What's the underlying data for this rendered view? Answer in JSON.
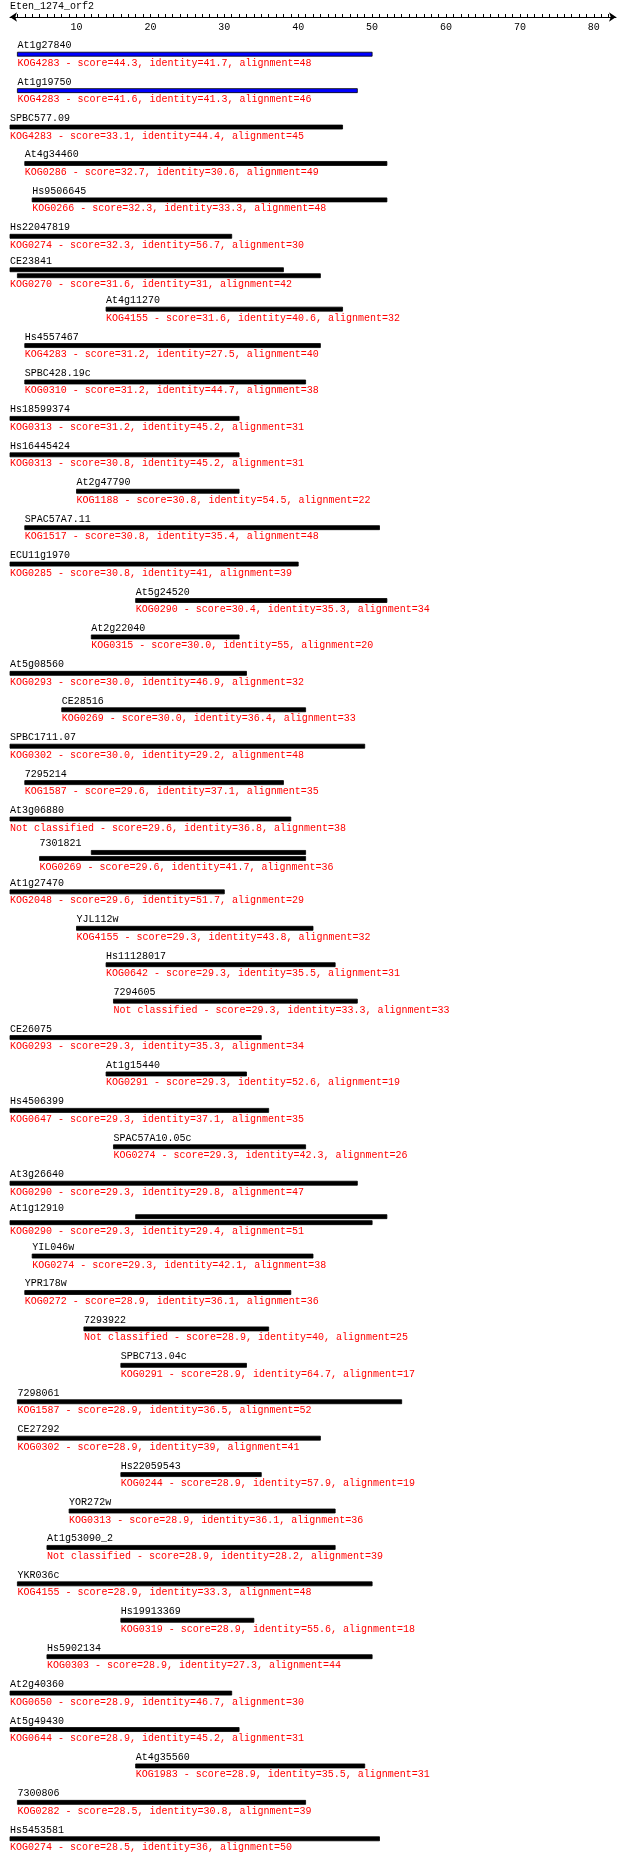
{
  "chart_data": {
    "type": "bar",
    "orientation": "horizontal",
    "title": "Eten_1274_orf2",
    "categories": [
      "At1g27840",
      "At1g19750",
      "SPBC577.09",
      "At4g34460",
      "Hs9506645",
      "Hs22047819",
      "CE23841",
      "At4g11270",
      "Hs4557467",
      "SPBC428.19c",
      "Hs18599374",
      "Hs16445424",
      "At2g47790",
      "SPAC57A7.11",
      "ECU11g1970",
      "At5g24520",
      "At2g22040",
      "At5g08560",
      "CE28516",
      "SPBC1711.07",
      "7295214",
      "At3g06880",
      "7301821",
      "At1g27470",
      "YJL112w",
      "Hs11128017",
      "7294605",
      "CE26075",
      "At1g15440",
      "Hs4506399",
      "SPAC57A10.05c",
      "At3g26640",
      "At1g12910",
      "YIL046w",
      "YPR178w",
      "7293922",
      "SPBC713.04c",
      "7298061",
      "CE27292",
      "Hs22059543",
      "YOR272w",
      "At1g53090_2",
      "YKR036c",
      "Hs19913369",
      "Hs5902134",
      "At2g40360",
      "At5g49430",
      "At4g35560",
      "7300806",
      "Hs5453581"
    ],
    "series": [
      {
        "color": "#000000",
        "base": [
          null,
          null,
          null,
          null,
          null,
          null,
          null,
          null,
          null,
          null,
          null,
          null,
          null,
          null,
          null,
          null,
          null,
          null,
          null,
          null,
          null,
          null,
          12,
          null,
          null,
          null,
          null,
          null,
          null,
          null,
          null,
          null,
          18,
          null,
          null,
          null,
          null,
          null,
          null,
          null,
          null,
          null,
          null,
          null,
          null,
          null,
          null,
          null,
          null,
          null
        ],
        "values": [
          null,
          null,
          null,
          null,
          null,
          null,
          null,
          null,
          null,
          null,
          null,
          null,
          null,
          null,
          null,
          null,
          null,
          null,
          null,
          null,
          null,
          null,
          29,
          null,
          null,
          null,
          null,
          null,
          null,
          null,
          null,
          null,
          34,
          null,
          null,
          null,
          null,
          null,
          null,
          null,
          null,
          null,
          null,
          null,
          null,
          null,
          null,
          null,
          null,
          null
        ]
      },
      {
        "colors": [
          "#0000ff",
          "#0000ff",
          "#000000",
          "#000000",
          "#000000",
          "#000000",
          "#000000",
          "#000000",
          "#000000",
          "#000000",
          "#000000",
          "#000000",
          "#000000",
          "#000000",
          "#000000",
          "#000000",
          "#000000",
          "#000000",
          "#000000",
          "#000000",
          "#000000",
          "#000000",
          "#000000",
          "#000000",
          "#000000",
          "#000000",
          "#000000",
          "#000000",
          "#000000",
          "#000000",
          "#000000",
          "#000000",
          "#000000",
          "#000000",
          "#000000",
          "#000000",
          "#000000",
          "#000000",
          "#000000",
          "#000000",
          "#000000",
          "#000000",
          "#000000",
          "#000000",
          "#000000",
          "#000000",
          "#000000",
          "#000000",
          "#000000",
          "#000000"
        ],
        "base": [
          2,
          2,
          1,
          3,
          4,
          1,
          1,
          14,
          3,
          3,
          1,
          1,
          10,
          3,
          1,
          18,
          12,
          1,
          8,
          1,
          3,
          1,
          5,
          1,
          10,
          14,
          15,
          1,
          14,
          1,
          15,
          1,
          1,
          4,
          3,
          11,
          16,
          2,
          2,
          16,
          9,
          6,
          2,
          16,
          6,
          1,
          1,
          18,
          2,
          1
        ],
        "values": [
          48,
          46,
          45,
          49,
          48,
          30,
          37,
          32,
          40,
          38,
          31,
          31,
          22,
          48,
          39,
          34,
          20,
          32,
          33,
          48,
          35,
          38,
          36,
          29,
          32,
          31,
          33,
          34,
          19,
          35,
          26,
          47,
          49,
          38,
          36,
          25,
          17,
          52,
          41,
          19,
          36,
          39,
          48,
          18,
          44,
          30,
          31,
          31,
          39,
          50
        ]
      },
      {
        "color": "#000000",
        "base": [
          null,
          null,
          null,
          null,
          null,
          null,
          2,
          null,
          null,
          null,
          null,
          null,
          null,
          null,
          null,
          null,
          null,
          null,
          null,
          null,
          null,
          null,
          null,
          null,
          null,
          null,
          null,
          null,
          null,
          null,
          null,
          null,
          null,
          null,
          null,
          null,
          null,
          null,
          null,
          null,
          null,
          null,
          null,
          null,
          null,
          null,
          null,
          null,
          null,
          null
        ],
        "values": [
          null,
          null,
          null,
          null,
          null,
          null,
          41,
          null,
          null,
          null,
          null,
          null,
          null,
          null,
          null,
          null,
          null,
          null,
          null,
          null,
          null,
          null,
          null,
          null,
          null,
          null,
          null,
          null,
          null,
          null,
          null,
          null,
          null,
          null,
          null,
          null,
          null,
          null,
          null,
          null,
          null,
          null,
          null,
          null,
          null,
          null,
          null,
          null,
          null,
          null
        ]
      }
    ],
    "xlim": [
      1,
      83
    ],
    "xticks": [
      {
        "value": 2,
        "label": null
      },
      {
        "value": 3,
        "label": null
      },
      {
        "value": 4,
        "label": null
      },
      {
        "value": 5,
        "label": null
      },
      {
        "value": 6,
        "label": null
      },
      {
        "value": 7,
        "label": null
      },
      {
        "value": 8,
        "label": null
      },
      {
        "value": 9,
        "label": null
      },
      10,
      {
        "value": 11,
        "label": null
      },
      {
        "value": 12,
        "label": null
      },
      {
        "value": 13,
        "label": null
      },
      {
        "value": 14,
        "label": null
      },
      {
        "value": 15,
        "label": null
      },
      {
        "value": 16,
        "label": null
      },
      {
        "value": 17,
        "label": null
      },
      {
        "value": 18,
        "label": null
      },
      {
        "value": 19,
        "label": null
      },
      20,
      {
        "value": 21,
        "label": null
      },
      {
        "value": 22,
        "label": null
      },
      {
        "value": 23,
        "label": null
      },
      {
        "value": 24,
        "label": null
      },
      {
        "value": 25,
        "label": null
      },
      {
        "value": 26,
        "label": null
      },
      {
        "value": 27,
        "label": null
      },
      {
        "value": 28,
        "label": null
      },
      {
        "value": 29,
        "label": null
      },
      30,
      {
        "value": 31,
        "label": null
      },
      {
        "value": 32,
        "label": null
      },
      {
        "value": 33,
        "label": null
      },
      {
        "value": 34,
        "label": null
      },
      {
        "value": 35,
        "label": null
      },
      {
        "value": 36,
        "label": null
      },
      {
        "value": 37,
        "label": null
      },
      {
        "value": 38,
        "label": null
      },
      {
        "value": 39,
        "label": null
      },
      40,
      {
        "value": 41,
        "label": null
      },
      {
        "value": 42,
        "label": null
      },
      {
        "value": 43,
        "label": null
      },
      {
        "value": 44,
        "label": null
      },
      {
        "value": 45,
        "label": null
      },
      {
        "value": 46,
        "label": null
      },
      {
        "value": 47,
        "label": null
      },
      {
        "value": 48,
        "label": null
      },
      {
        "value": 49,
        "label": null
      },
      50,
      {
        "value": 51,
        "label": null
      },
      {
        "value": 52,
        "label": null
      },
      {
        "value": 53,
        "label": null
      },
      {
        "value": 54,
        "label": null
      },
      {
        "value": 55,
        "label": null
      },
      {
        "value": 56,
        "label": null
      },
      {
        "value": 57,
        "label": null
      },
      {
        "value": 58,
        "label": null
      },
      {
        "value": 59,
        "label": null
      },
      60,
      {
        "value": 61,
        "label": null
      },
      {
        "value": 62,
        "label": null
      },
      {
        "value": 63,
        "label": null
      },
      {
        "value": 64,
        "label": null
      },
      {
        "value": 65,
        "label": null
      },
      {
        "value": 66,
        "label": null
      },
      {
        "value": 67,
        "label": null
      },
      {
        "value": 68,
        "label": null
      },
      {
        "value": 69,
        "label": null
      },
      70,
      {
        "value": 71,
        "label": null
      },
      {
        "value": 72,
        "label": null
      },
      {
        "value": 73,
        "label": null
      },
      {
        "value": 74,
        "label": null
      },
      {
        "value": 75,
        "label": null
      },
      {
        "value": 76,
        "label": null
      },
      {
        "value": 77,
        "label": null
      },
      {
        "value": 78,
        "label": null
      },
      {
        "value": 79,
        "label": null
      },
      80,
      {
        "value": 81,
        "label": null
      },
      {
        "value": 82,
        "label": null
      }
    ],
    "annotations": [
      "KOG4283 - score=44.3, identity=41.7, alignment=48",
      "KOG4283 - score=41.6, identity=41.3, alignment=46",
      "KOG4283 - score=33.1, identity=44.4, alignment=45",
      "KOG0286 - score=32.7, identity=30.6, alignment=49",
      "KOG0266 - score=32.3, identity=33.3, alignment=48",
      "KOG0274 - score=32.3, identity=56.7, alignment=30",
      "KOG0270 - score=31.6, identity=31, alignment=42",
      "KOG4155 - score=31.6, identity=40.6, alignment=32",
      "KOG4283 - score=31.2, identity=27.5, alignment=40",
      "KOG0310 - score=31.2, identity=44.7, alignment=38",
      "KOG0313 - score=31.2, identity=45.2, alignment=31",
      "KOG0313 - score=30.8, identity=45.2, alignment=31",
      "KOG1188 - score=30.8, identity=54.5, alignment=22",
      "KOG1517 - score=30.8, identity=35.4, alignment=48",
      "KOG0285 - score=30.8, identity=41, alignment=39",
      "KOG0290 - score=30.4, identity=35.3, alignment=34",
      "KOG0315 - score=30.0, identity=55, alignment=20",
      "KOG0293 - score=30.0, identity=46.9, alignment=32",
      "KOG0269 - score=30.0, identity=36.4, alignment=33",
      "KOG0302 - score=30.0, identity=29.2, alignment=48",
      "KOG1587 - score=29.6, identity=37.1, alignment=35",
      "Not classified - score=29.6, identity=36.8, alignment=38",
      "KOG0269 - score=29.6, identity=41.7, alignment=36",
      "KOG2048 - score=29.6, identity=51.7, alignment=29",
      "KOG4155 - score=29.3, identity=43.8, alignment=32",
      "KOG0642 - score=29.3, identity=35.5, alignment=31",
      "Not classified - score=29.3, identity=33.3, alignment=33",
      "KOG0293 - score=29.3, identity=35.3, alignment=34",
      "KOG0291 - score=29.3, identity=52.6, alignment=19",
      "KOG0647 - score=29.3, identity=37.1, alignment=35",
      "KOG0274 - score=29.3, identity=42.3, alignment=26",
      "KOG0290 - score=29.3, identity=29.8, alignment=47",
      "KOG0290 - score=29.3, identity=29.4, alignment=51",
      "KOG0274 - score=29.3, identity=42.1, alignment=38",
      "KOG0272 - score=28.9, identity=36.1, alignment=36",
      "Not classified - score=28.9, identity=40, alignment=25",
      "KOG0291 - score=28.9, identity=64.7, alignment=17",
      "KOG1587 - score=28.9, identity=36.5, alignment=52",
      "KOG0302 - score=28.9, identity=39, alignment=41",
      "KOG0244 - score=28.9, identity=57.9, alignment=19",
      "KOG0313 - score=28.9, identity=36.1, alignment=36",
      "Not classified - score=28.9, identity=28.2, alignment=39",
      "KOG4155 - score=28.9, identity=33.3, alignment=48",
      "KOG0319 - score=28.9, identity=55.6, alignment=18",
      "KOG0303 - score=28.9, identity=27.3, alignment=44",
      "KOG0650 - score=28.9, identity=46.7, alignment=30",
      "KOG0644 - score=28.9, identity=45.2, alignment=31",
      "KOG1983 - score=28.9, identity=35.5, alignment=31",
      "KOG0282 - score=28.5, identity=30.8, alignment=39",
      "KOG0274 - score=28.5, identity=36, alignment=50"
    ]
  }
}
